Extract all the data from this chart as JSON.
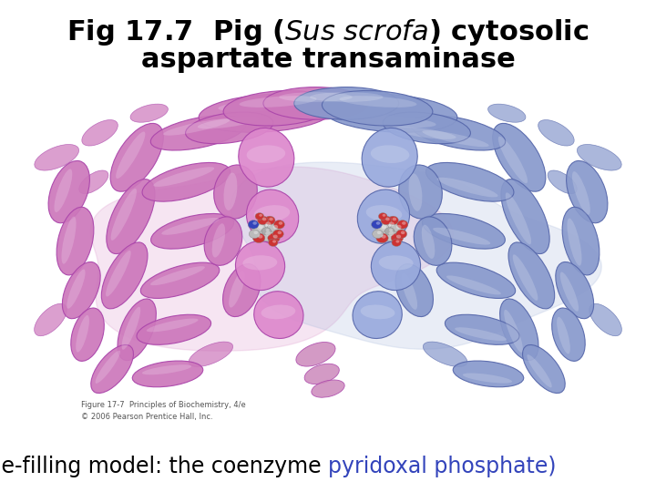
{
  "title_line1": "Fig 17.7  Pig (",
  "title_italic": "Sus scrofa",
  "title_line1_end": ") cytosolic",
  "title_line2": "aspartate transaminase",
  "caption_black": "(Space-filling model: the coenzyme ",
  "caption_blue": "pyridoxal phosphate)",
  "small_text_line1": "Figure 17-7  Principles of Biochemistry, 4/e",
  "small_text_line2": "© 2006 Pearson Prentice Hall, Inc.",
  "bg_color": "#ffffff",
  "title_fontsize": 22,
  "caption_fontsize": 17,
  "small_fontsize": 6,
  "title_color": "#000000",
  "caption_color": "#000000",
  "blue_color": "#3344bb",
  "title_weight": "bold",
  "pink_helix": "#cc77bb",
  "pink_base": "#cc88cc",
  "blue_helix": "#8899cc",
  "blue_base": "#99aadd",
  "pink_dark": "#aa44aa",
  "blue_dark": "#5566aa"
}
